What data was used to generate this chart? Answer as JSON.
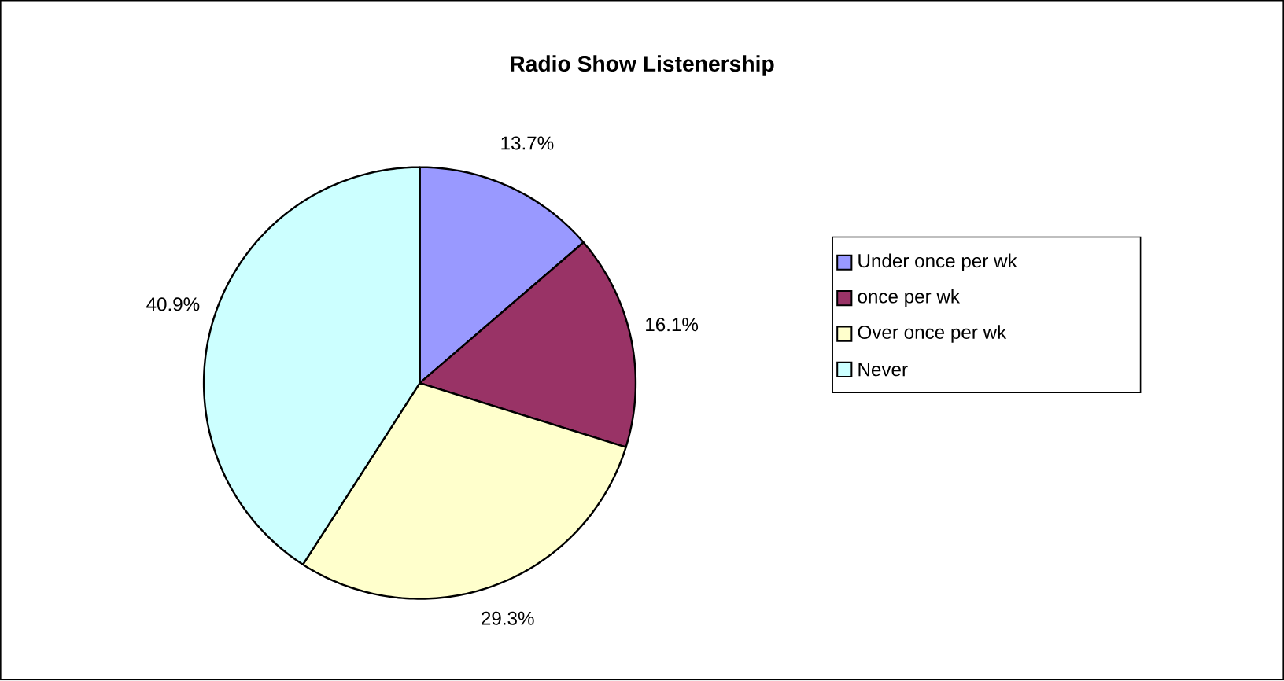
{
  "chart_data": {
    "type": "pie",
    "title": "Radio Show Listenership",
    "categories": [
      "Under once per wk",
      "once per wk",
      "Over once per wk",
      "Never"
    ],
    "values": [
      13.7,
      16.1,
      29.3,
      40.9
    ],
    "colors": [
      "#9999ff",
      "#993366",
      "#ffffcc",
      "#ccffff"
    ],
    "value_labels": [
      "13.7%",
      "16.1%",
      "29.3%",
      "40.9%"
    ],
    "legend": "right"
  }
}
